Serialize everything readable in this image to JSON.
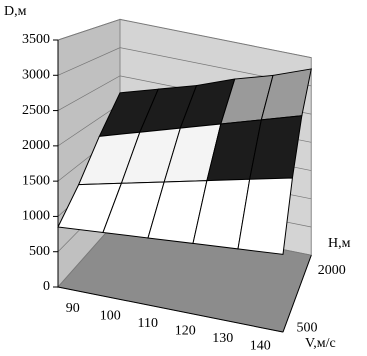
{
  "chart_data": {
    "type": "surface",
    "z_label": "D,м",
    "y_label": "H,м",
    "x_label": "V,м/с",
    "categories": [
      "90",
      "100",
      "110",
      "120",
      "130",
      "140"
    ],
    "series": [
      {
        "name": "500",
        "values": [
          850,
          900,
          950,
          1000,
          1050,
          1100
        ]
      },
      {
        "name": null,
        "values": [
          1200,
          1350,
          1500,
          1650,
          1800,
          1950
        ]
      },
      {
        "name": null,
        "values": [
          1700,
          1900,
          2100,
          2300,
          2500,
          2700
        ]
      },
      {
        "name": "2000",
        "values": [
          2200,
          2400,
          2600,
          2850,
          3050,
          3300
        ]
      }
    ],
    "zlim": [
      0,
      3500
    ],
    "zticks": [
      0,
      500,
      1000,
      1500,
      2000,
      2500,
      3000,
      3500
    ],
    "band_colors": [
      "#c0c0c0",
      "#808080",
      "#ffffff",
      "#f4f4f4",
      "#1c1c1c",
      "#9a9a9a",
      "#c4c4c4",
      "#dcdcdc"
    ],
    "grid": true
  }
}
